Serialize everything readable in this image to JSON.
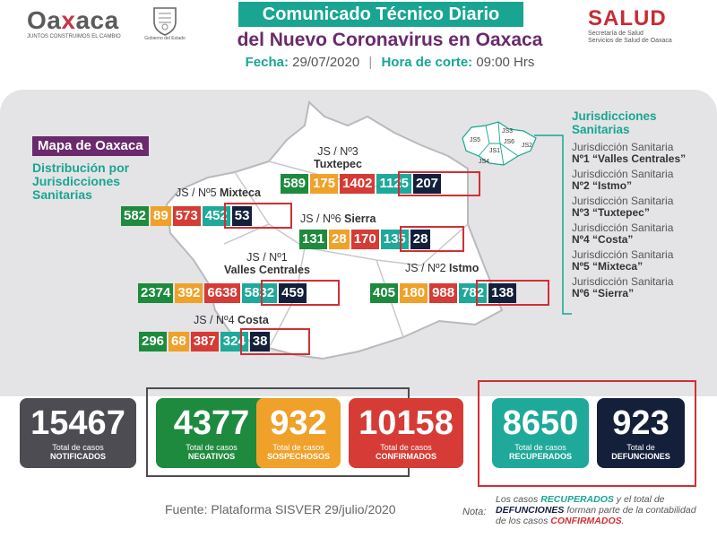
{
  "header": {
    "brand": {
      "pre": "Oa",
      "x": "x",
      "post": "aca",
      "tagline": "JUNTOS CONSTRUIMOS EL CAMBIO"
    },
    "crest_caption": "Gobierno del Estado",
    "title_line1": "Comunicado Técnico Diario",
    "title_line2": "del Nuevo Coronavirus en Oaxaca",
    "fecha_label": "Fecha:",
    "fecha_value": "29/07/2020",
    "hora_label": "Hora de corte:",
    "hora_value": "09:00 Hrs",
    "salud": "SALUD",
    "salud_sub1": "Secretaría de Salud",
    "salud_sub2": "Servicios de Salud de Oaxaca"
  },
  "map": {
    "tag": "Mapa de Oaxaca",
    "subtitle": "Distribución por Jurisdicciones Sanitarias",
    "mini_labels": [
      "JS5",
      "JS3",
      "JS1",
      "JS2",
      "JS4",
      "JS6"
    ],
    "jurisdictions": [
      {
        "label": "JS / Nº3",
        "label2": "Tuxtepec",
        "negativos": "589",
        "sospechosos": "175",
        "confirmados": "1402",
        "recuperados": "1125",
        "defunciones": "207"
      },
      {
        "label": "JS / Nº5",
        "label2": "Mixteca",
        "negativos": "582",
        "sospechosos": "89",
        "confirmados": "573",
        "recuperados": "452",
        "defunciones": "53"
      },
      {
        "label": "JS / Nº6",
        "label2": "Sierra",
        "negativos": "131",
        "sospechosos": "28",
        "confirmados": "170",
        "recuperados": "135",
        "defunciones": "28"
      },
      {
        "label": "JS / Nº1",
        "label2": "Valles Centrales",
        "negativos": "2374",
        "sospechosos": "392",
        "confirmados": "6638",
        "recuperados": "5832",
        "defunciones": "459"
      },
      {
        "label": "JS / Nº2",
        "label2": "Istmo",
        "negativos": "405",
        "sospechosos": "180",
        "confirmados": "988",
        "recuperados": "782",
        "defunciones": "138"
      },
      {
        "label": "JS / Nº4",
        "label2": "Costa",
        "negativos": "296",
        "sospechosos": "68",
        "confirmados": "387",
        "recuperados": "324",
        "defunciones": "38"
      }
    ],
    "legend": {
      "heading": "Jurisdicciones Sanitarias",
      "items": [
        {
          "line1": "Jurisdicción Sanitaria",
          "line2": "Nº1 “Valles Centrales”"
        },
        {
          "line1": "Jurisdicción Sanitaria",
          "line2": "Nº2 “Istmo”"
        },
        {
          "line1": "Jurisdicción Sanitaria",
          "line2": "Nº3 “Tuxtepec”"
        },
        {
          "line1": "Jurisdicción Sanitaria",
          "line2": "Nº4 “Costa”"
        },
        {
          "line1": "Jurisdicción Sanitaria",
          "line2": "Nº5 “Mixteca”"
        },
        {
          "line1": "Jurisdicción Sanitaria",
          "line2": "Nº6 “Sierra”"
        }
      ]
    }
  },
  "totals": [
    {
      "value": "15467",
      "line1": "Total de casos",
      "line2": "NOTIFICADOS"
    },
    {
      "value": "4377",
      "line1": "Total de casos",
      "line2": "NEGATIVOS"
    },
    {
      "value": "932",
      "line1": "Total de casos",
      "line2": "SOSPECHOSOS"
    },
    {
      "value": "10158",
      "line1": "Total de casos",
      "line2": "CONFIRMADOS"
    },
    {
      "value": "8650",
      "line1": "Total de casos",
      "line2": "RECUPERADOS"
    },
    {
      "value": "923",
      "line1": "Total de",
      "line2": "DEFUNCIONES"
    }
  ],
  "footer": {
    "fuente": "Fuente: Plataforma SISVER 29/julio/2020",
    "nota_label": "Nota:",
    "nota_a": "Los casos ",
    "nota_rec": "RECUPERADOS",
    "nota_b": " y el total de ",
    "nota_def": "DEFUNCIONES",
    "nota_c": " forman parte de la contabilidad de los casos ",
    "nota_conf": "CONFIRMADOS",
    "nota_d": "."
  },
  "colors": {
    "teal": "#19a592",
    "purple": "#6a2a6c",
    "green": "#1e8a3e",
    "orange": "#efa12a",
    "red": "#d63b35",
    "navy": "#14203a",
    "gray": "#4d4c53"
  }
}
